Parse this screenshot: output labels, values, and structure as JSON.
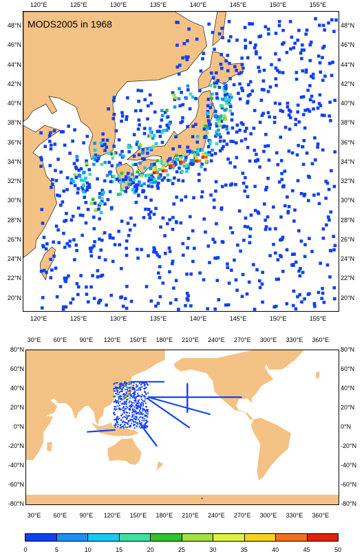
{
  "top_map": {
    "title": "MODS2005 in 1968",
    "lon_labels": [
      "120°E",
      "125°E",
      "130°E",
      "135°E",
      "140°E",
      "145°E",
      "150°E",
      "155°E"
    ],
    "lat_labels": [
      "48°N",
      "46°N",
      "44°N",
      "42°N",
      "40°N",
      "38°N",
      "36°N",
      "34°N",
      "32°N",
      "30°N",
      "28°N",
      "26°N",
      "24°N",
      "22°N",
      "20°N"
    ]
  },
  "bottom_map": {
    "lon_labels": [
      "30°E",
      "60°E",
      "90°E",
      "120°E",
      "150°E",
      "180°E",
      "210°E",
      "240°E",
      "270°E",
      "300°E",
      "330°E",
      "360°E"
    ],
    "lat_labels": [
      "80°N",
      "60°N",
      "40°N",
      "20°N",
      "0°N",
      "-20°N",
      "-40°N",
      "-60°N",
      "-80°N"
    ]
  },
  "colorbar": {
    "ticks": [
      "0",
      "5",
      "10",
      "15",
      "20",
      "25",
      "30",
      "35",
      "40",
      "45",
      "50"
    ],
    "colors": [
      "#1040f0",
      "#1f8ff2",
      "#18c8f0",
      "#40e0a0",
      "#30c030",
      "#a0e040",
      "#e0f040",
      "#f8d020",
      "#f07020",
      "#e02010"
    ]
  },
  "colors": {
    "land": "#f4c284",
    "ocean": "#ffffff"
  }
}
